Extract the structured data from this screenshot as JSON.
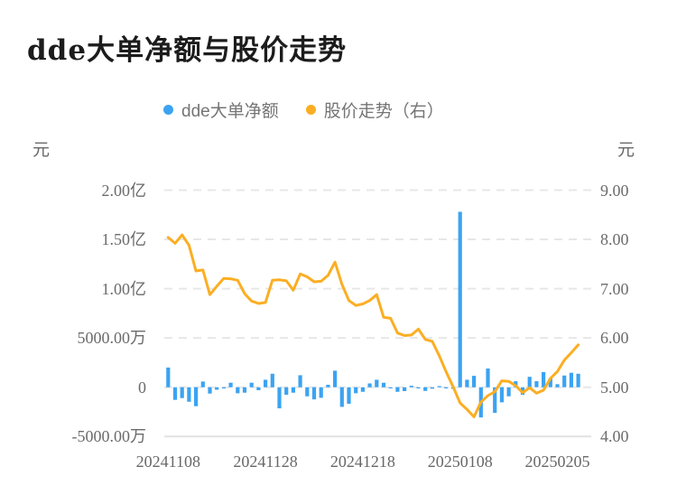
{
  "title": "dde大单净额与股价走势",
  "legend": [
    {
      "name": "dde大单净额",
      "color": "#3ba3f2"
    },
    {
      "name": "股价走势（右）",
      "color": "#fbae23"
    }
  ],
  "left_axis": {
    "unit": "元",
    "ticks": [
      "2.00亿",
      "1.50亿",
      "1.00亿",
      "5000.00万",
      "0",
      "-5000.00万"
    ]
  },
  "right_axis": {
    "unit": "元",
    "ticks": [
      "9.00",
      "8.00",
      "7.00",
      "6.00",
      "5.00",
      "4.00"
    ]
  },
  "x_axis": {
    "labels": [
      "20241108",
      "20241128",
      "20241218",
      "20250108",
      "20250205"
    ]
  },
  "chart_data": {
    "type": "combo-bar-line",
    "x_tick_labels": [
      "20241108",
      "20241128",
      "20241218",
      "20250108",
      "20250205"
    ],
    "x_tick_indices": [
      0,
      14,
      28,
      42,
      56
    ],
    "left_ylim_wan": [
      -5000,
      20000
    ],
    "right_ylim": [
      4,
      9
    ],
    "left_ticks_wan": [
      20000,
      15000,
      10000,
      5000,
      0,
      -5000
    ],
    "right_ticks": [
      9,
      8,
      7,
      6,
      5,
      4
    ],
    "grid": "horizontal-dashed, bottom solid",
    "legend_position": "top-center",
    "colors": {
      "bar": "#3ba3f2",
      "line": "#fbae23",
      "grid": "#e7e7e7"
    },
    "series": [
      {
        "name": "dde大单净额",
        "type": "bar",
        "y_axis": "left",
        "unit": "万元",
        "values": [
          2000,
          -1280,
          -1100,
          -1470,
          -1920,
          580,
          -640,
          -250,
          -90,
          460,
          -610,
          -550,
          460,
          -300,
          760,
          1370,
          -2140,
          -760,
          -550,
          1220,
          -920,
          -1230,
          -1070,
          250,
          1680,
          -1990,
          -1680,
          -610,
          -460,
          390,
          760,
          460,
          -90,
          -460,
          -390,
          150,
          -90,
          -370,
          -150,
          90,
          -90,
          -150,
          17800,
          760,
          1160,
          -3060,
          1900,
          -2600,
          -1530,
          -920,
          610,
          -770,
          1060,
          610,
          1540,
          920,
          310,
          1190,
          1470,
          1370
        ]
      },
      {
        "name": "股价走势（右）",
        "type": "line",
        "y_axis": "right",
        "unit": "元",
        "values": [
          8.04,
          7.92,
          8.09,
          7.88,
          7.36,
          7.38,
          6.88,
          7.05,
          7.21,
          7.2,
          7.17,
          6.9,
          6.75,
          6.7,
          6.72,
          7.17,
          7.18,
          7.16,
          6.97,
          7.3,
          7.24,
          7.14,
          7.15,
          7.27,
          7.54,
          7.09,
          6.76,
          6.66,
          6.69,
          6.76,
          6.88,
          6.42,
          6.4,
          6.1,
          6.05,
          6.06,
          6.18,
          5.97,
          5.93,
          5.64,
          5.31,
          5.01,
          4.68,
          4.55,
          4.4,
          4.7,
          4.83,
          4.91,
          5.13,
          5.12,
          5.03,
          4.89,
          4.99,
          4.88,
          4.94,
          5.18,
          5.32,
          5.55,
          5.7,
          5.86
        ]
      }
    ]
  }
}
